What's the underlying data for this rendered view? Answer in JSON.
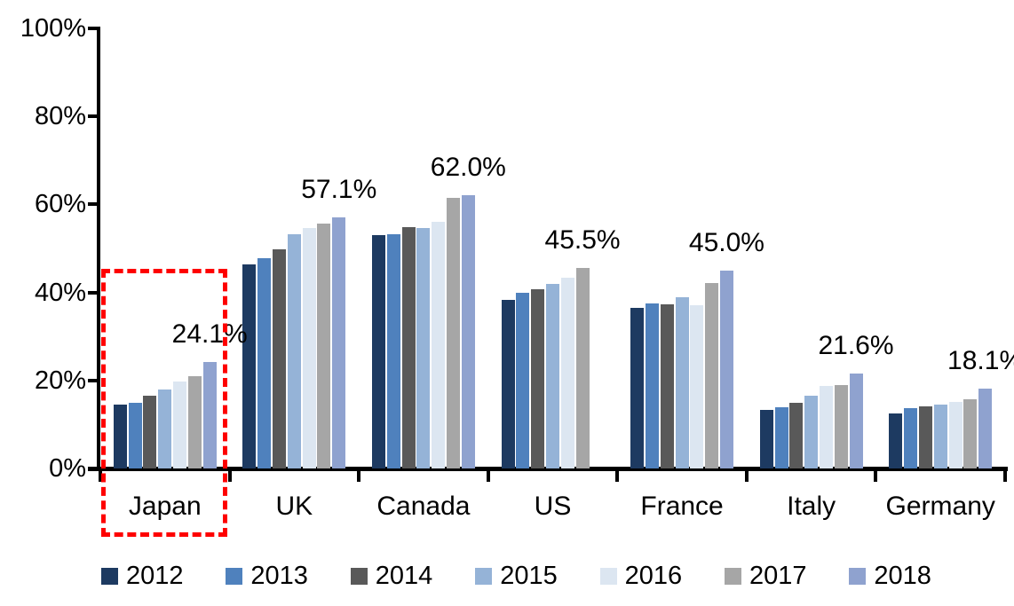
{
  "chart_data": {
    "type": "bar",
    "title": "",
    "categories": [
      "Japan",
      "UK",
      "Canada",
      "US",
      "France",
      "Italy",
      "Germany"
    ],
    "series": [
      {
        "name": "2012",
        "color": "#1D3A61",
        "values": [
          14.6,
          46.3,
          53.0,
          38.3,
          36.5,
          13.3,
          12.5
        ]
      },
      {
        "name": "2013",
        "color": "#4F81BD",
        "values": [
          15.0,
          47.8,
          53.3,
          40.0,
          37.5,
          14.0,
          13.8
        ]
      },
      {
        "name": "2014",
        "color": "#595959",
        "values": [
          16.5,
          49.8,
          54.8,
          40.8,
          37.3,
          15.0,
          14.2
        ]
      },
      {
        "name": "2015",
        "color": "#95B3D7",
        "values": [
          17.9,
          53.2,
          54.7,
          42.0,
          39.0,
          16.6,
          14.5
        ]
      },
      {
        "name": "2016",
        "color": "#DCE6F1",
        "values": [
          19.8,
          54.7,
          56.1,
          43.4,
          37.0,
          18.8,
          15.2
        ]
      },
      {
        "name": "2017",
        "color": "#A6A6A6",
        "values": [
          20.9,
          55.7,
          61.5,
          45.5,
          42.2,
          19.0,
          15.7
        ]
      },
      {
        "name": "2018",
        "color": "#8FA2CF",
        "values": [
          24.1,
          57.1,
          62.0,
          null,
          45.0,
          21.6,
          18.1
        ]
      }
    ],
    "group_labels": [
      "24.1%",
      "57.1%",
      "62.0%",
      "45.5%",
      "45.0%",
      "21.6%",
      "18.1%"
    ],
    "y_axis": {
      "min": 0,
      "max": 100,
      "tick_step": 20,
      "ticks": [
        "0%",
        "20%",
        "40%",
        "60%",
        "80%",
        "100%"
      ]
    },
    "xlabel": "",
    "ylabel": "",
    "grid": false,
    "legend_position": "bottom",
    "highlight": {
      "category": "Japan",
      "color": "#FF0000",
      "style": "dashed-box"
    }
  }
}
